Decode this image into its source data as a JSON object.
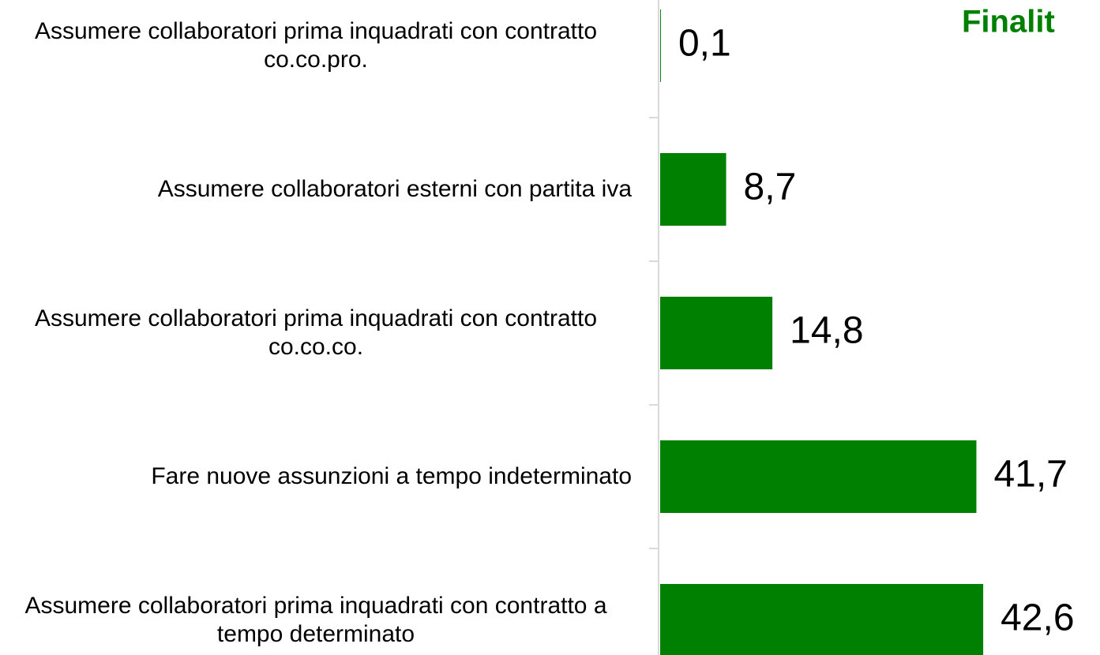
{
  "chart_data": {
    "type": "barh",
    "title": "Finalit",
    "categories": [
      "Assumere collaboratori prima inquadrati con contratto co.co.pro.",
      "Assumere collaboratori esterni con partita iva",
      "Assumere collaboratori prima inquadrati con contratto co.co.co.",
      "Fare nuove assunzioni a tempo indeterminato",
      "Assumere collaboratori prima inquadrati con contratto a tempo determinato"
    ],
    "values": [
      0.1,
      8.7,
      14.8,
      41.7,
      42.6
    ],
    "value_labels": [
      "0,1",
      "8,7",
      "14,8",
      "41,7",
      "42,6"
    ],
    "color": "#008000",
    "xlim": [
      0,
      58
    ]
  }
}
